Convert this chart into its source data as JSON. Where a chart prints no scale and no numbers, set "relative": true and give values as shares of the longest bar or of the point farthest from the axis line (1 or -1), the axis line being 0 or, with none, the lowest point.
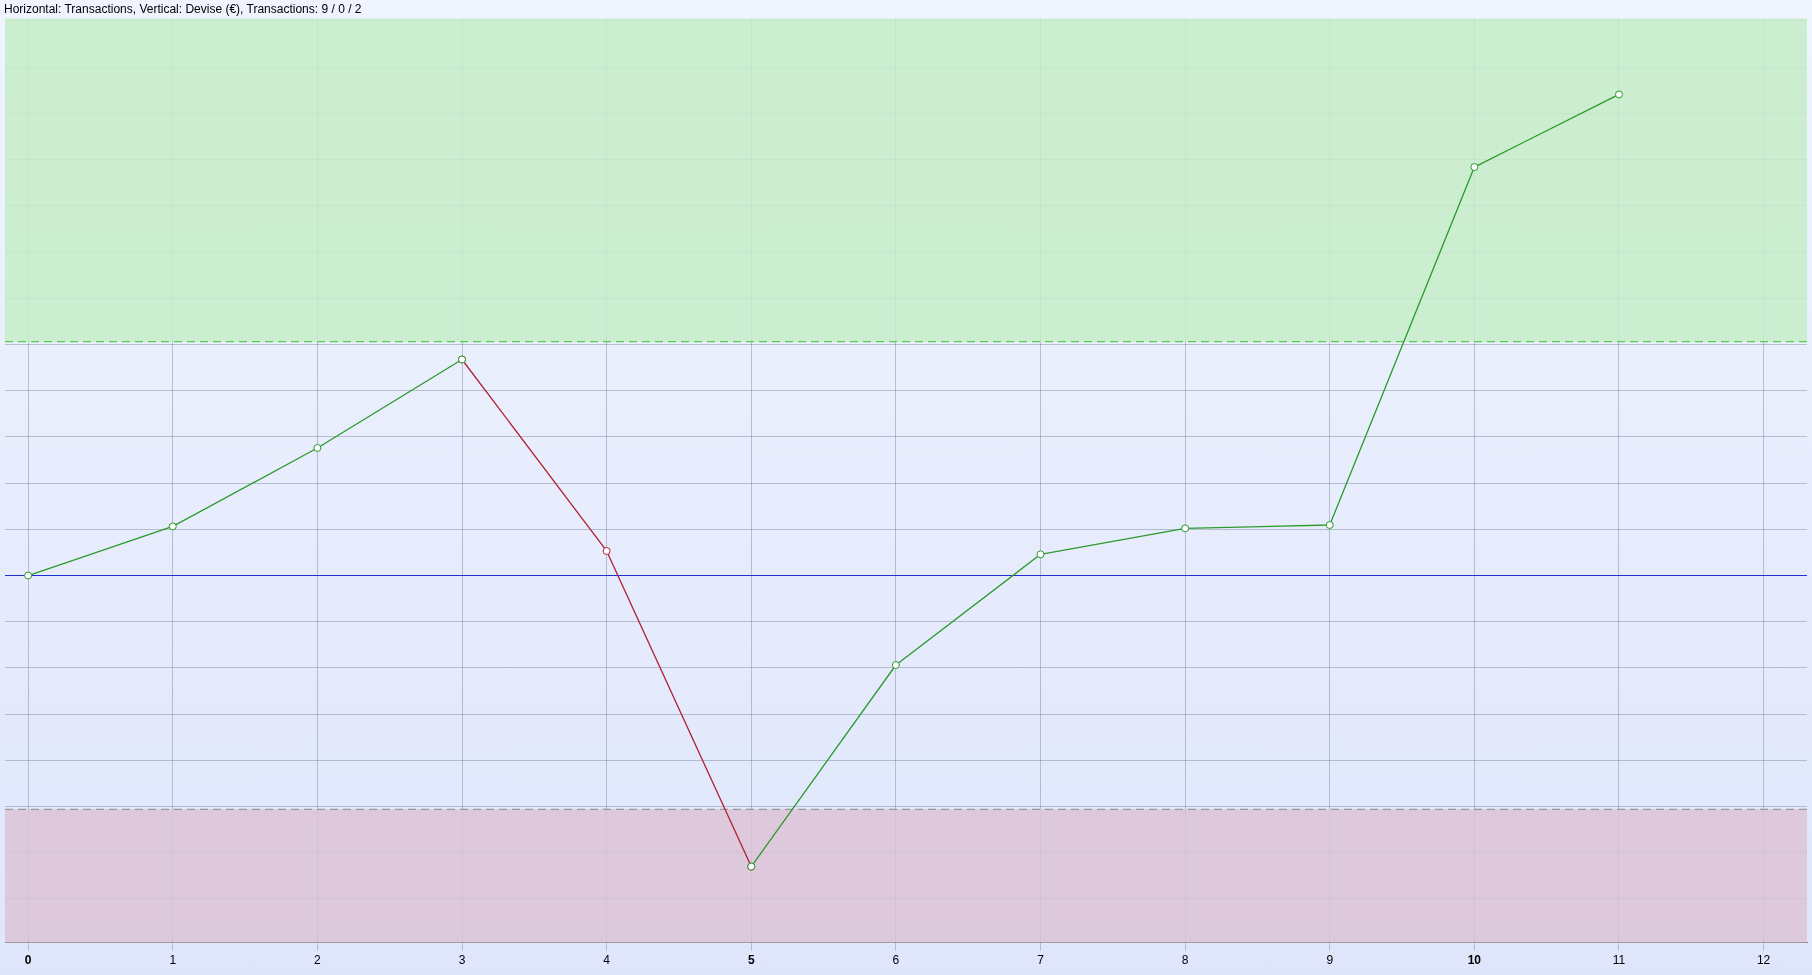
{
  "chart_data": {
    "type": "line",
    "title": "Horizontal: Transactions, Vertical: Devise (€), Transactions: 9 / 0 / 2",
    "relative": true,
    "x": [
      0,
      1,
      2,
      3,
      4,
      5,
      6,
      7,
      8,
      9,
      10,
      11
    ],
    "xlim": [
      -0.16,
      12.3
    ],
    "xticks": [
      0,
      1,
      2,
      3,
      4,
      5,
      6,
      7,
      8,
      9,
      10,
      11,
      12
    ],
    "series": [
      {
        "color": "#2a9a2a",
        "values": [
          0,
          0.102,
          0.265,
          0.449,
          null,
          -0.605,
          -0.186,
          0.044,
          0.098,
          0.105,
          0.849,
          1
        ]
      },
      {
        "color": "#b02030",
        "x": [
          3,
          4,
          5
        ],
        "values": [
          0.449,
          0.051,
          -0.605
        ]
      }
    ],
    "ref_lines": [
      {
        "axis": "y",
        "value": 0,
        "color": "#2030d0"
      },
      {
        "axis": "y",
        "value": 0.486,
        "color": "#55cc55",
        "line_style": "dashed"
      },
      {
        "axis": "y",
        "value": -0.486,
        "color": "#999999",
        "line_style": "dashed"
      }
    ],
    "bands": [
      {
        "axis": "y",
        "from": 0.486,
        "to": 1.158,
        "color": "#c6ecc8"
      },
      {
        "axis": "y",
        "from": -0.763,
        "to": -0.486,
        "color": "#dcc2d6"
      }
    ],
    "grid": true,
    "legend": false,
    "marker": "circle",
    "line_style": "solid"
  }
}
